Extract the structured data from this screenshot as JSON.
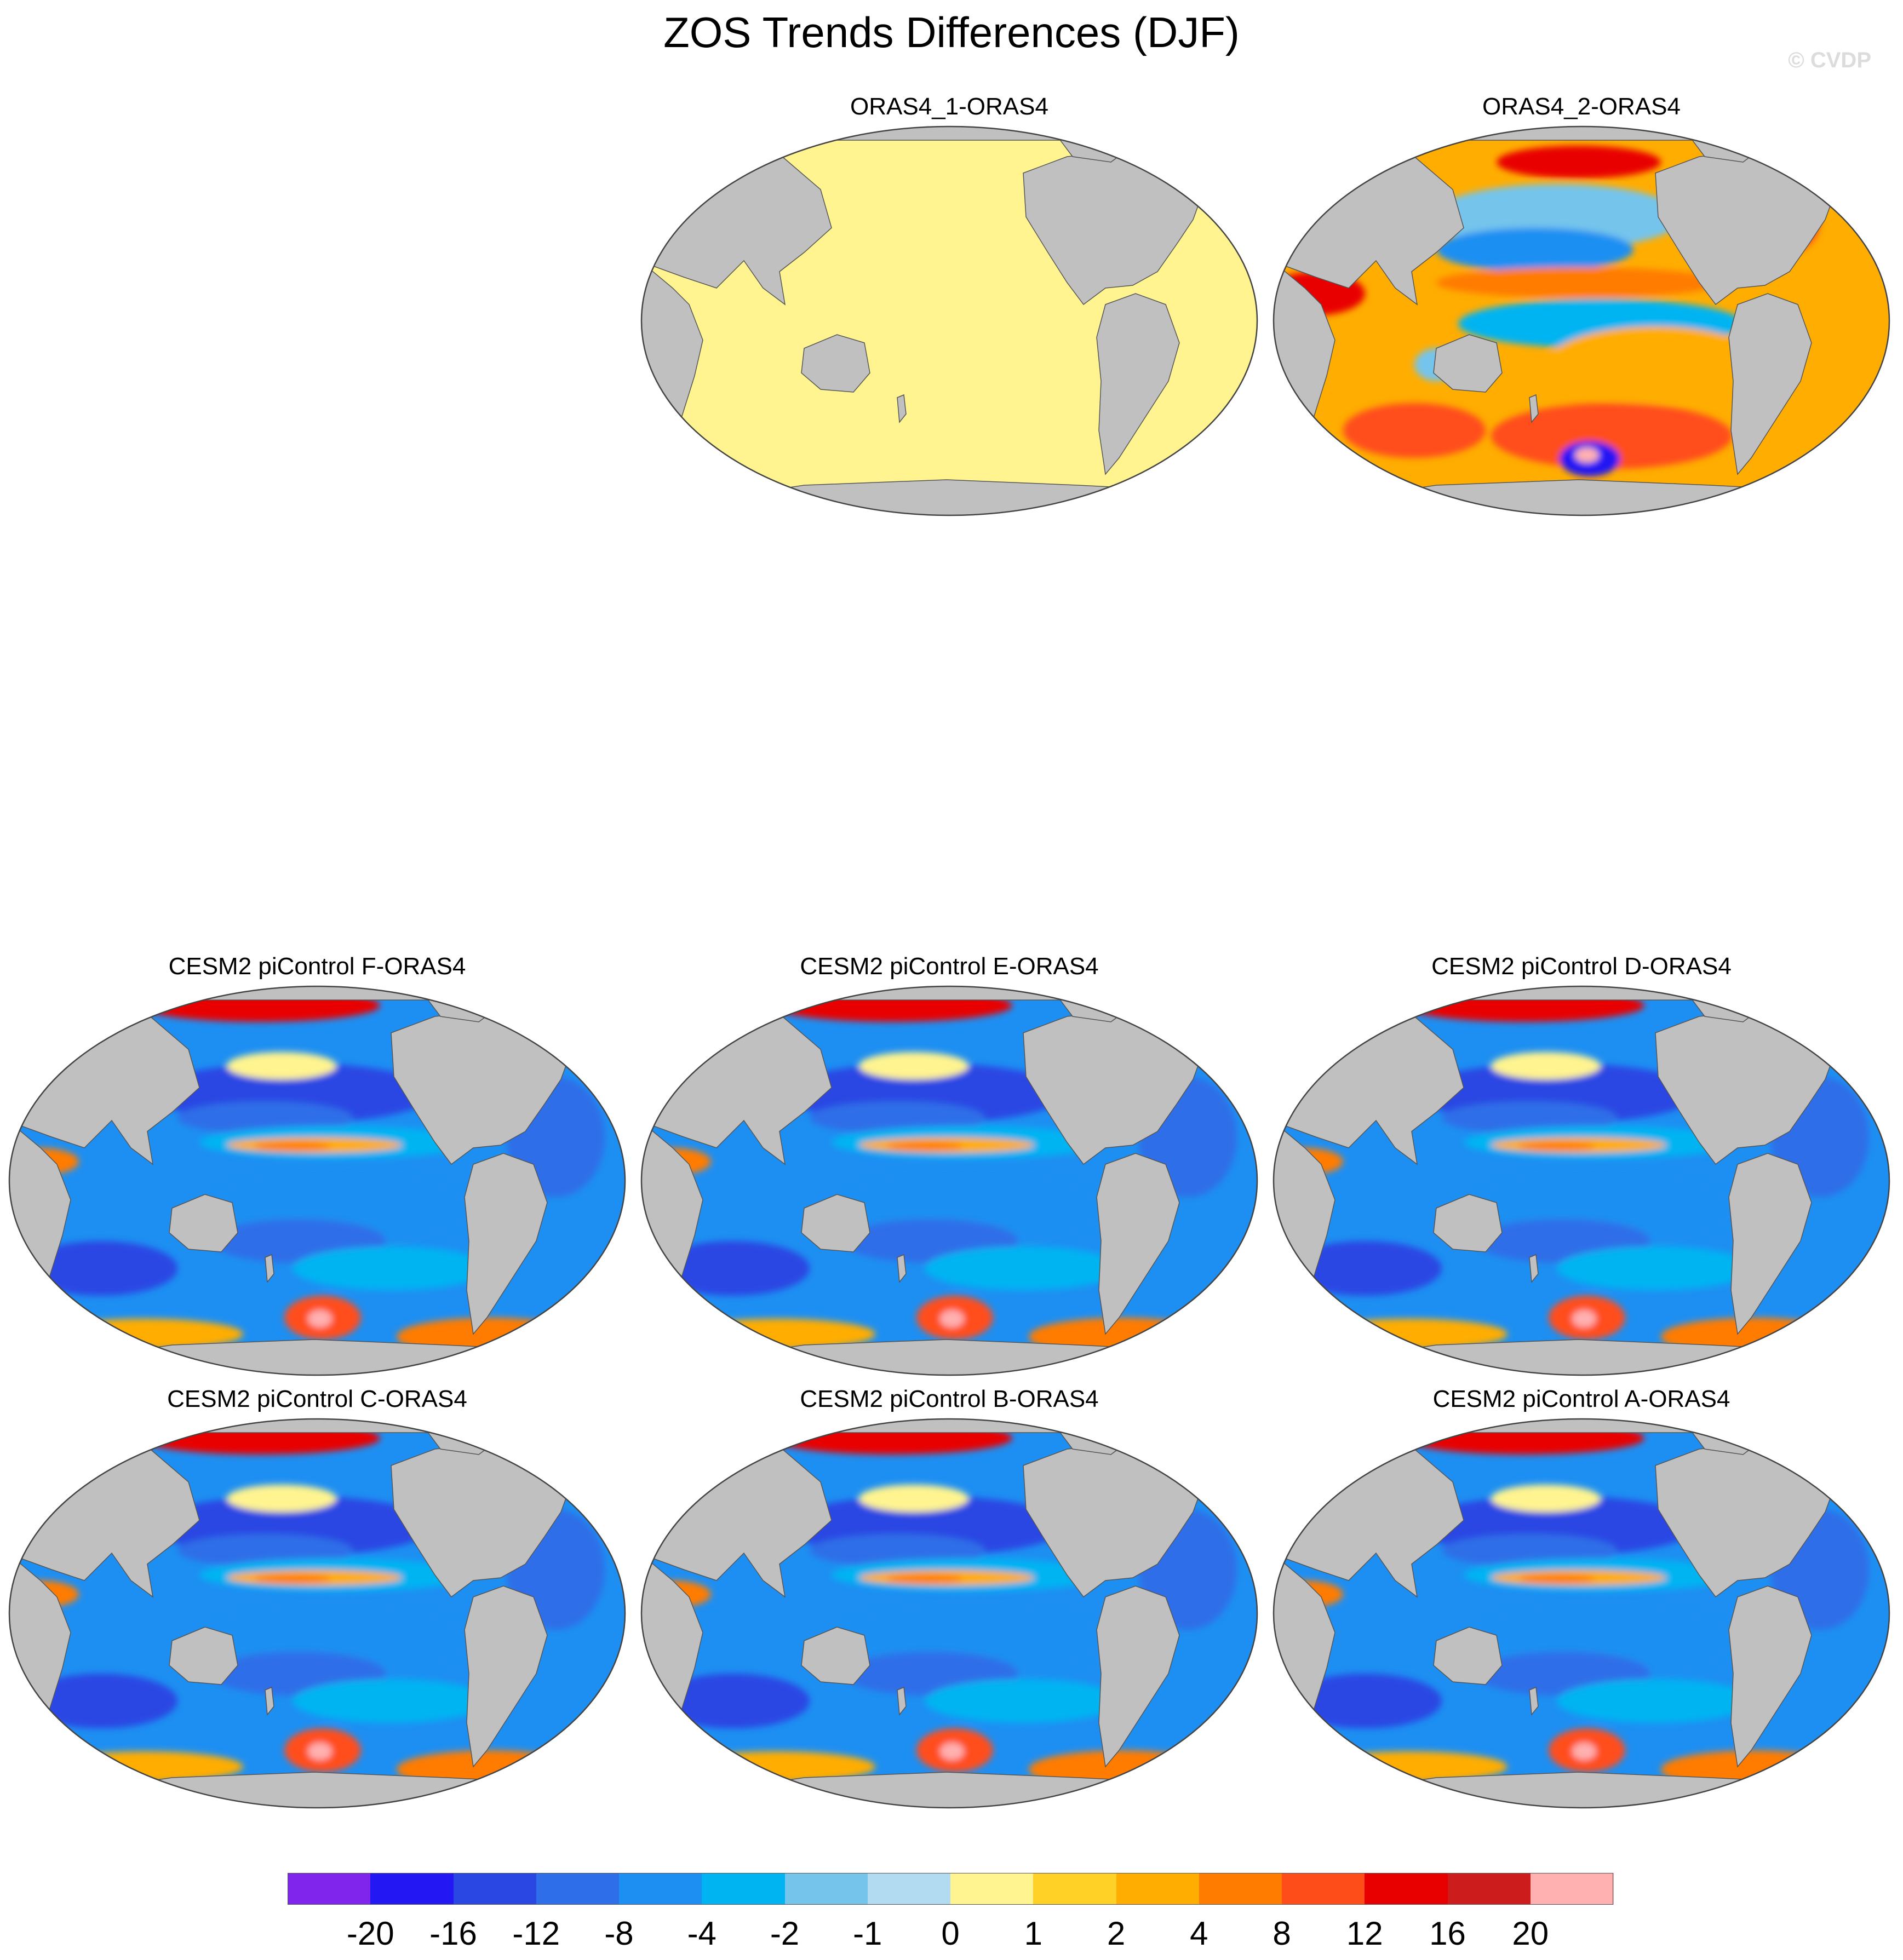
{
  "title": "ZOS Trends Differences (DJF)",
  "credit": "© CVDP",
  "panels": [
    {
      "id": "oras4-1",
      "label": "ORAS4_1-ORAS4",
      "style": "uniform"
    },
    {
      "id": "oras4-2",
      "label": "ORAS4_2-ORAS4",
      "style": "warm"
    },
    {
      "id": "cesm2-f",
      "label": "CESM2 piControl F-ORAS4",
      "style": "cool"
    },
    {
      "id": "cesm2-e",
      "label": "CESM2 piControl E-ORAS4",
      "style": "cool"
    },
    {
      "id": "cesm2-d",
      "label": "CESM2 piControl D-ORAS4",
      "style": "cool"
    },
    {
      "id": "cesm2-c",
      "label": "CESM2 piControl C-ORAS4",
      "style": "cool"
    },
    {
      "id": "cesm2-b",
      "label": "CESM2 piControl B-ORAS4",
      "style": "cool"
    },
    {
      "id": "cesm2-a",
      "label": "CESM2 piControl A-ORAS4",
      "style": "cool"
    }
  ],
  "colorbar": {
    "colors": [
      "#7f25ec",
      "#2318f4",
      "#2a46e3",
      "#2e6ee8",
      "#1d8ff2",
      "#00b4f2",
      "#74c4ec",
      "#b2daf0",
      "#fff48f",
      "#ffd126",
      "#ffad00",
      "#ff7c00",
      "#ff4d1a",
      "#e80000",
      "#cc1c1c",
      "#ffb0b0"
    ],
    "labels": [
      "-20",
      "-16",
      "-12",
      "-8",
      "-4",
      "-2",
      "-1",
      "0",
      "1",
      "2",
      "4",
      "8",
      "12",
      "16",
      "20"
    ]
  },
  "land_color": "#c0c0c0",
  "uniform_color": "#fff48f"
}
